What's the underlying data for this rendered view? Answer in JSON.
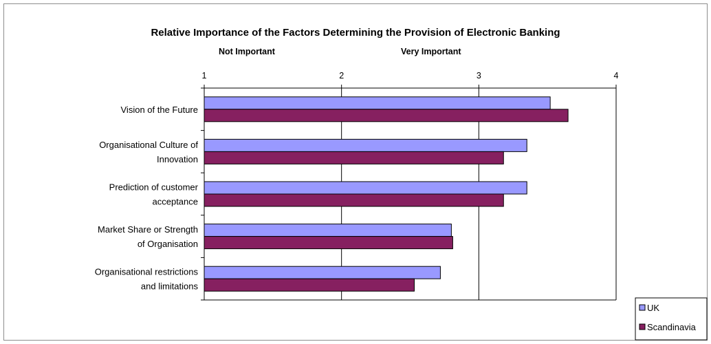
{
  "chart_data": {
    "type": "bar",
    "orientation": "horizontal",
    "title": "Relative Importance of the Factors Determining the Provision of Electronic Banking",
    "scale_labels": {
      "low": "Not Important",
      "high": "Very Important"
    },
    "categories": [
      [
        "Vision of the Future"
      ],
      [
        "Organisational Culture of",
        "Innovation"
      ],
      [
        "Prediction of customer",
        "acceptance"
      ],
      [
        "Market Share or Strength",
        "of Organisation"
      ],
      [
        "Organisational restrictions",
        "and limitations"
      ]
    ],
    "series": [
      {
        "name": "UK",
        "color": "#9999ff",
        "values": [
          3.52,
          3.35,
          3.35,
          2.8,
          2.72
        ]
      },
      {
        "name": "Scandinavia",
        "color": "#862060",
        "values": [
          3.65,
          3.18,
          3.18,
          2.81,
          2.53
        ]
      }
    ],
    "xlim": [
      1,
      4
    ],
    "xticks": [
      1,
      2,
      3,
      4
    ],
    "grid": "vertical",
    "legend": "bottom-right"
  }
}
